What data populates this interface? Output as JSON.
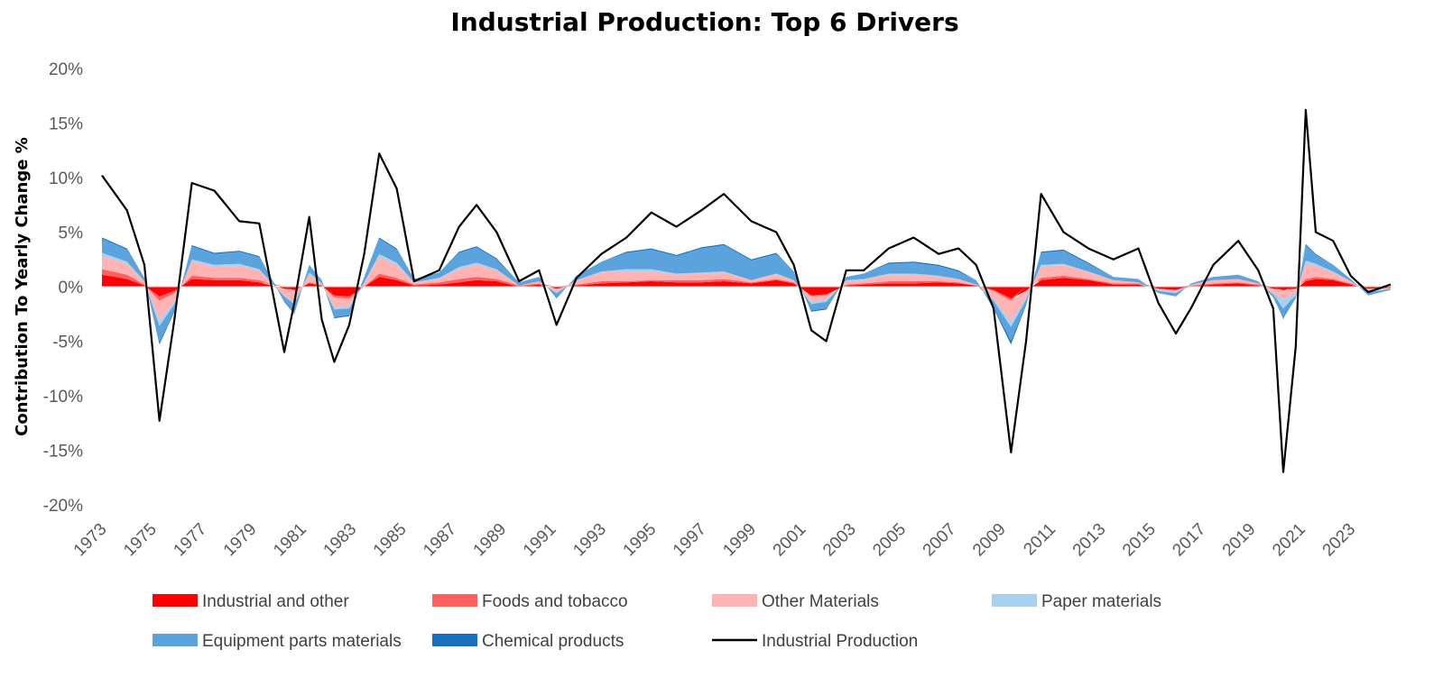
{
  "chart_data": {
    "type": "area",
    "title": "Industrial Production: Top 6 Drivers",
    "ylabel": "Contribution  To Yearly Change %",
    "xlabel": "",
    "xlim": [
      1973,
      2024.6
    ],
    "ylim": [
      -20,
      20
    ],
    "y_ticks": [
      -20,
      -15,
      -10,
      -5,
      0,
      5,
      10,
      15,
      20
    ],
    "y_tick_labels": [
      "-20%",
      "-15%",
      "-10%",
      "-5%",
      "0%",
      "5%",
      "10%",
      "15%",
      "20%"
    ],
    "x_ticks": [
      1973,
      1975,
      1977,
      1979,
      1981,
      1983,
      1985,
      1987,
      1989,
      1991,
      1993,
      1995,
      1997,
      1999,
      2001,
      2003,
      2005,
      2007,
      2009,
      2011,
      2013,
      2015,
      2017,
      2019,
      2021,
      2023
    ],
    "x_tick_labels": [
      "1973",
      "1975",
      "1977",
      "1979",
      "1981",
      "1983",
      "1985",
      "1987",
      "1989",
      "1991",
      "1993",
      "1995",
      "1997",
      "1999",
      "2001",
      "2003",
      "2005",
      "2007",
      "2009",
      "2011",
      "2013",
      "2015",
      "2017",
      "2019",
      "2021",
      "2023"
    ],
    "grid": false,
    "legend_position": "bottom",
    "x": [
      1973.0,
      1974.0,
      1974.7,
      1975.3,
      1975.9,
      1976.6,
      1977.5,
      1978.5,
      1979.3,
      1980.3,
      1980.7,
      1981.3,
      1981.8,
      1982.3,
      1982.9,
      1983.5,
      1984.1,
      1984.8,
      1985.5,
      1986.5,
      1987.3,
      1988.0,
      1988.8,
      1989.7,
      1990.5,
      1991.2,
      1992.0,
      1993.0,
      1994.0,
      1995.0,
      1996.0,
      1997.0,
      1997.9,
      1999.0,
      2000.0,
      2000.7,
      2001.4,
      2002.0,
      2002.8,
      2003.5,
      2004.5,
      2005.5,
      2006.5,
      2007.3,
      2008.0,
      2008.7,
      2009.4,
      2010.0,
      2010.6,
      2011.5,
      2012.5,
      2013.5,
      2014.5,
      2015.3,
      2016.0,
      2016.6,
      2017.5,
      2018.5,
      2019.3,
      2019.9,
      2020.3,
      2020.8,
      2021.2,
      2021.6,
      2022.3,
      2023.0,
      2023.7,
      2024.6
    ],
    "series": [
      {
        "name": "Industrial and other",
        "color": "#ff0000",
        "values": [
          1.1,
          0.7,
          0.1,
          -0.9,
          -0.4,
          0.7,
          0.6,
          0.6,
          0.4,
          -0.2,
          -0.3,
          0.3,
          0.1,
          -0.8,
          -0.9,
          0.0,
          0.9,
          0.6,
          0.1,
          0.2,
          0.4,
          0.6,
          0.5,
          0.0,
          0.2,
          -0.2,
          0.1,
          0.3,
          0.4,
          0.5,
          0.4,
          0.4,
          0.5,
          0.3,
          0.6,
          0.3,
          -0.8,
          -0.7,
          0.1,
          0.2,
          0.3,
          0.3,
          0.4,
          0.3,
          0.1,
          -0.3,
          -1.1,
          -0.4,
          0.6,
          0.8,
          0.6,
          0.2,
          0.2,
          -0.2,
          -0.3,
          0.0,
          0.2,
          0.3,
          0.1,
          -0.2,
          -0.3,
          -0.2,
          0.5,
          0.7,
          0.6,
          0.2,
          -0.2,
          -0.1
        ]
      },
      {
        "name": "Foods and tobacco",
        "color": "#ff5f5f",
        "values": [
          0.5,
          0.4,
          0.1,
          -0.4,
          -0.2,
          0.3,
          0.2,
          0.2,
          0.2,
          0.0,
          -0.1,
          0.1,
          0.0,
          -0.2,
          -0.2,
          0.0,
          0.3,
          0.2,
          0.1,
          0.2,
          0.3,
          0.3,
          0.2,
          0.1,
          0.1,
          0.0,
          0.1,
          0.2,
          0.1,
          0.1,
          0.2,
          0.2,
          0.2,
          0.1,
          0.1,
          0.1,
          -0.1,
          -0.1,
          0.1,
          0.1,
          0.2,
          0.2,
          0.1,
          0.1,
          0.0,
          -0.1,
          -0.2,
          0.0,
          0.2,
          0.2,
          0.1,
          0.1,
          0.1,
          0.0,
          0.0,
          0.1,
          0.1,
          0.1,
          0.1,
          0.0,
          -0.1,
          0.0,
          0.2,
          0.2,
          0.1,
          0.1,
          0.0,
          0.0
        ]
      },
      {
        "name": "Other Materials",
        "color": "#ffb3b3",
        "values": [
          1.2,
          1.0,
          0.3,
          -1.8,
          -0.8,
          1.3,
          1.0,
          1.1,
          0.9,
          -0.6,
          -1.0,
          0.7,
          0.2,
          -0.9,
          -0.7,
          0.3,
          1.5,
          1.2,
          0.2,
          0.3,
          0.9,
          1.1,
          0.8,
          0.0,
          0.2,
          -0.3,
          0.3,
          0.8,
          0.9,
          0.8,
          0.5,
          0.6,
          0.6,
          0.2,
          0.4,
          0.2,
          -0.5,
          -0.4,
          0.3,
          0.3,
          0.6,
          0.6,
          0.4,
          0.3,
          0.1,
          -0.7,
          -1.9,
          -0.6,
          1.0,
          1.0,
          0.6,
          0.3,
          0.1,
          -0.1,
          -0.2,
          0.1,
          0.3,
          0.3,
          0.1,
          -0.4,
          -0.8,
          -0.4,
          1.4,
          1.0,
          0.6,
          0.2,
          -0.2,
          -0.1
        ]
      },
      {
        "name": "Paper materials",
        "color": "#a9d0ee",
        "values": [
          0.3,
          0.2,
          0.0,
          -0.5,
          -0.2,
          0.2,
          0.2,
          0.2,
          0.1,
          -0.1,
          -0.2,
          0.2,
          0.0,
          -0.2,
          -0.2,
          0.1,
          0.3,
          0.2,
          0.0,
          0.1,
          0.2,
          0.2,
          0.1,
          0.0,
          0.0,
          -0.1,
          0.1,
          0.1,
          0.2,
          0.2,
          0.1,
          0.1,
          0.1,
          0.0,
          0.1,
          0.0,
          -0.2,
          -0.2,
          0.1,
          0.1,
          0.1,
          0.1,
          0.1,
          0.0,
          0.0,
          -0.2,
          -0.5,
          -0.2,
          0.2,
          0.1,
          0.1,
          0.0,
          0.0,
          -0.1,
          -0.1,
          0.0,
          0.0,
          0.0,
          0.0,
          -0.1,
          -0.8,
          -0.2,
          0.3,
          0.2,
          0.1,
          0.0,
          -0.1,
          0.0
        ]
      },
      {
        "name": "Equipment parts materials",
        "color": "#5ba3dc",
        "values": [
          1.3,
          1.1,
          0.3,
          -1.5,
          -0.6,
          1.2,
          1.0,
          1.1,
          1.1,
          -0.4,
          -0.8,
          0.7,
          0.3,
          -0.7,
          -0.6,
          0.5,
          1.4,
          1.2,
          0.3,
          0.5,
          1.3,
          1.4,
          0.9,
          0.3,
          0.4,
          -0.5,
          0.4,
          0.9,
          1.5,
          1.8,
          1.6,
          2.2,
          2.4,
          1.8,
          1.8,
          0.8,
          -0.6,
          -0.6,
          0.3,
          0.5,
          0.9,
          1.0,
          0.9,
          0.7,
          0.4,
          -0.6,
          -1.3,
          -0.4,
          1.1,
          1.2,
          0.7,
          0.3,
          0.3,
          -0.2,
          -0.3,
          0.1,
          0.3,
          0.4,
          0.2,
          -0.3,
          -0.9,
          -0.3,
          1.4,
          0.8,
          0.6,
          0.2,
          -0.3,
          -0.1
        ]
      },
      {
        "name": "Chemical products",
        "color": "#1a6ec1",
        "values": [
          0.1,
          0.1,
          0.0,
          -0.2,
          -0.1,
          0.1,
          0.1,
          0.1,
          0.1,
          -0.1,
          -0.1,
          0.0,
          0.0,
          -0.1,
          -0.1,
          0.0,
          0.1,
          0.1,
          0.0,
          0.0,
          0.1,
          0.1,
          0.1,
          0.0,
          0.0,
          0.0,
          0.0,
          0.0,
          0.1,
          0.1,
          0.1,
          0.1,
          0.1,
          0.1,
          0.1,
          0.0,
          -0.1,
          -0.1,
          0.0,
          0.0,
          0.1,
          0.1,
          0.1,
          0.1,
          0.0,
          -0.1,
          -0.3,
          -0.1,
          0.1,
          0.1,
          0.1,
          0.0,
          0.0,
          0.0,
          0.0,
          0.0,
          0.0,
          0.0,
          0.0,
          0.0,
          -0.1,
          0.0,
          0.1,
          0.1,
          0.0,
          0.0,
          0.0,
          0.0
        ]
      },
      {
        "name": "Industrial Production",
        "color": "#000000",
        "kind": "line",
        "values": [
          10.2,
          7.0,
          2.0,
          -12.3,
          -3.0,
          9.5,
          8.8,
          6.0,
          5.8,
          -6.0,
          -1.5,
          6.4,
          -3.0,
          -6.9,
          -3.5,
          3.0,
          12.2,
          9.0,
          0.5,
          1.5,
          5.5,
          7.5,
          5.0,
          0.5,
          1.5,
          -3.5,
          0.8,
          3.0,
          4.5,
          6.8,
          5.5,
          7.0,
          8.5,
          6.0,
          5.0,
          2.0,
          -4.0,
          -5.0,
          1.5,
          1.5,
          3.5,
          4.5,
          3.0,
          3.5,
          2.0,
          -2.0,
          -15.2,
          -5.0,
          8.5,
          5.0,
          3.5,
          2.5,
          3.5,
          -1.5,
          -4.3,
          -2.0,
          2.0,
          4.2,
          1.5,
          -2.0,
          -17.0,
          -5.5,
          16.2,
          5.0,
          4.2,
          1.0,
          -0.5,
          0.2
        ]
      }
    ]
  }
}
